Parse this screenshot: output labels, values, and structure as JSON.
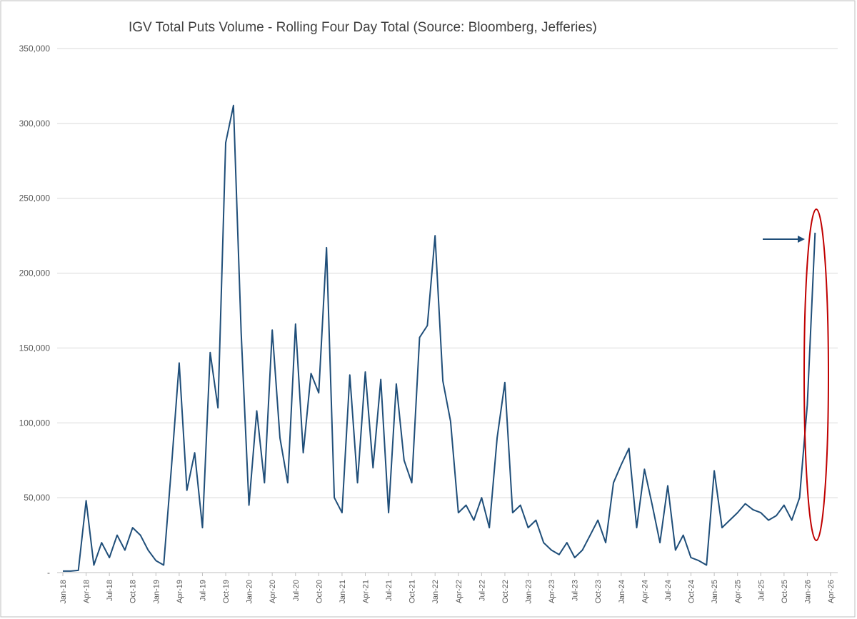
{
  "chart_data": {
    "type": "line",
    "title": "IGV Total Puts Volume - Rolling Four Day Total (Source: Bloomberg, Jefferies)",
    "x": [
      "2018-01",
      "2018-02",
      "2018-03",
      "2018-04",
      "2018-05",
      "2018-06",
      "2018-07",
      "2018-08",
      "2018-09",
      "2018-10",
      "2018-11",
      "2018-12",
      "2019-01",
      "2019-02",
      "2019-03",
      "2019-04",
      "2019-05",
      "2019-06",
      "2019-07",
      "2019-08",
      "2019-09",
      "2019-10",
      "2019-11",
      "2019-12",
      "2020-01",
      "2020-02",
      "2020-03",
      "2020-04",
      "2020-05",
      "2020-06",
      "2020-07",
      "2020-08",
      "2020-09",
      "2020-10",
      "2020-11",
      "2020-12",
      "2021-01",
      "2021-02",
      "2021-03",
      "2021-04",
      "2021-05",
      "2021-06",
      "2021-07",
      "2021-08",
      "2021-09",
      "2021-10",
      "2021-11",
      "2021-12",
      "2022-01",
      "2022-02",
      "2022-03",
      "2022-04",
      "2022-05",
      "2022-06",
      "2022-07",
      "2022-08",
      "2022-09",
      "2022-10",
      "2022-11",
      "2022-12",
      "2023-01",
      "2023-02",
      "2023-03",
      "2023-04",
      "2023-05",
      "2023-06",
      "2023-07",
      "2023-08",
      "2023-09",
      "2023-10",
      "2023-11",
      "2023-12",
      "2024-01",
      "2024-02",
      "2024-03",
      "2024-04",
      "2024-05",
      "2024-06",
      "2024-07",
      "2024-08",
      "2024-09",
      "2024-10",
      "2024-11",
      "2024-12",
      "2025-01",
      "2025-02",
      "2025-03",
      "2025-04",
      "2025-05",
      "2025-06",
      "2025-07",
      "2025-08",
      "2025-09",
      "2025-10",
      "2025-11",
      "2025-12",
      "2026-01",
      "2026-02"
    ],
    "series": [
      {
        "name": "IGV Total Puts Volume",
        "color": "#1f4e79",
        "values": [
          1000,
          1000,
          1500,
          48000,
          5000,
          20000,
          10000,
          25000,
          15000,
          30000,
          25000,
          15000,
          8000,
          5000,
          70000,
          140000,
          55000,
          80000,
          30000,
          147000,
          110000,
          287000,
          312000,
          160000,
          45000,
          108000,
          60000,
          162000,
          90000,
          60000,
          166000,
          80000,
          133000,
          120000,
          217000,
          50000,
          40000,
          132000,
          60000,
          134000,
          70000,
          129000,
          40000,
          126000,
          75000,
          60000,
          157000,
          165000,
          225000,
          128000,
          101000,
          40000,
          45000,
          35000,
          50000,
          30000,
          90000,
          127000,
          40000,
          45000,
          30000,
          35000,
          20000,
          15000,
          12000,
          20000,
          10000,
          15000,
          25000,
          35000,
          20000,
          60000,
          72000,
          83000,
          30000,
          69000,
          45000,
          20000,
          58000,
          15000,
          25000,
          10000,
          8000,
          5000,
          68000,
          30000,
          35000,
          40000,
          46000,
          42000,
          40000,
          35000,
          38000,
          45000,
          35000,
          50000,
          112000,
          227000
        ]
      }
    ],
    "xlim": [
      "2018-01",
      "2026-04"
    ],
    "xticks": [
      {
        "value": "2018-01",
        "label": "Jan-18"
      },
      {
        "value": "2018-04",
        "label": "Apr-18"
      },
      {
        "value": "2018-07",
        "label": "Jul-18"
      },
      {
        "value": "2018-10",
        "label": "Oct-18"
      },
      {
        "value": "2019-01",
        "label": "Jan-19"
      },
      {
        "value": "2019-04",
        "label": "Apr-19"
      },
      {
        "value": "2019-07",
        "label": "Jul-19"
      },
      {
        "value": "2019-10",
        "label": "Oct-19"
      },
      {
        "value": "2020-01",
        "label": "Jan-20"
      },
      {
        "value": "2020-04",
        "label": "Apr-20"
      },
      {
        "value": "2020-07",
        "label": "Jul-20"
      },
      {
        "value": "2020-10",
        "label": "Oct-20"
      },
      {
        "value": "2021-01",
        "label": "Jan-21"
      },
      {
        "value": "2021-04",
        "label": "Apr-21"
      },
      {
        "value": "2021-07",
        "label": "Jul-21"
      },
      {
        "value": "2021-10",
        "label": "Oct-21"
      },
      {
        "value": "2022-01",
        "label": "Jan-22"
      },
      {
        "value": "2022-04",
        "label": "Apr-22"
      },
      {
        "value": "2022-07",
        "label": "Jul-22"
      },
      {
        "value": "2022-10",
        "label": "Oct-22"
      },
      {
        "value": "2023-01",
        "label": "Jan-23"
      },
      {
        "value": "2023-04",
        "label": "Apr-23"
      },
      {
        "value": "2023-07",
        "label": "Jul-23"
      },
      {
        "value": "2023-10",
        "label": "Oct-23"
      },
      {
        "value": "2024-01",
        "label": "Jan-24"
      },
      {
        "value": "2024-04",
        "label": "Apr-24"
      },
      {
        "value": "2024-07",
        "label": "Jul-24"
      },
      {
        "value": "2024-10",
        "label": "Oct-24"
      },
      {
        "value": "2025-01",
        "label": "Jan-25"
      },
      {
        "value": "2025-04",
        "label": "Apr-25"
      },
      {
        "value": "2025-07",
        "label": "Jul-25"
      },
      {
        "value": "2025-10",
        "label": "Oct-25"
      },
      {
        "value": "2026-01",
        "label": "Jan-26"
      },
      {
        "value": "2026-04",
        "label": "Apr-26"
      }
    ],
    "ylim": [
      0,
      350000
    ],
    "yticks": [
      {
        "value": 0,
        "label": "-"
      },
      {
        "value": 50000,
        "label": "50,000"
      },
      {
        "value": 100000,
        "label": "100,000"
      },
      {
        "value": 150000,
        "label": "150,000"
      },
      {
        "value": 200000,
        "label": "200,000"
      },
      {
        "value": 250000,
        "label": "250,000"
      },
      {
        "value": 300000,
        "label": "300,000"
      },
      {
        "value": 350000,
        "label": "350,000"
      }
    ],
    "grid": true
  }
}
